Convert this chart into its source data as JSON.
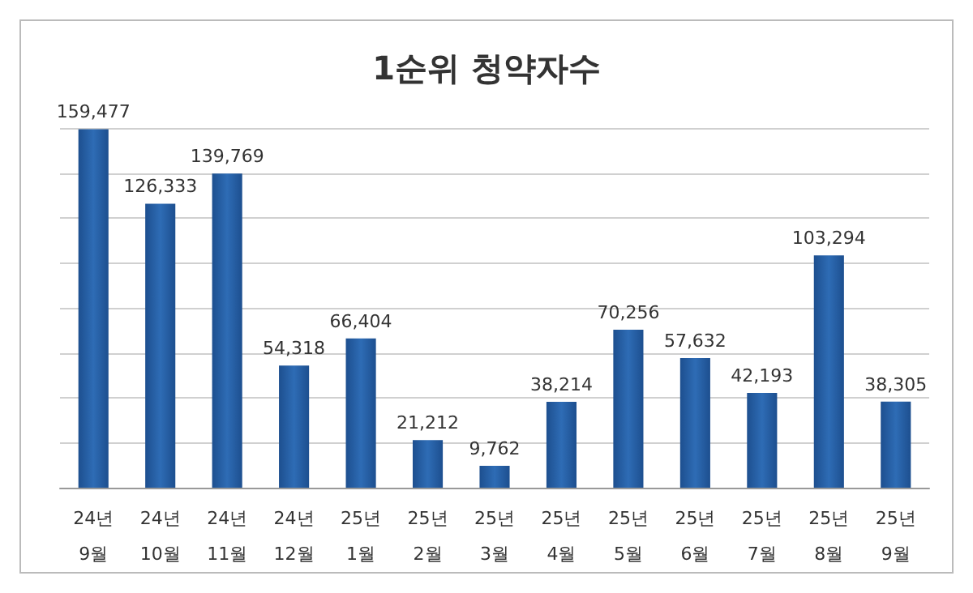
{
  "chart_data": {
    "type": "bar",
    "title": "1순위 청약자수",
    "categories": [
      "24년\n9월",
      "24년\n10월",
      "24년\n11월",
      "24년\n12월",
      "25년\n1월",
      "25년\n2월",
      "25년\n3월",
      "25년\n4월",
      "25년\n5월",
      "25년\n6월",
      "25년\n7월",
      "25년\n8월",
      "25년\n9월"
    ],
    "values": [
      159477,
      126333,
      139769,
      54318,
      66404,
      21212,
      9762,
      38214,
      70256,
      57632,
      42193,
      103294,
      38305
    ],
    "color": "#2e6cb5",
    "value_labels": [
      "159,477",
      "126,333",
      "139,769",
      "54,318",
      "66,404",
      "21,212",
      "9,762",
      "38,214",
      "70,256",
      "57,632",
      "42,193",
      "103,294",
      "38,305"
    ],
    "tick_labels": "x",
    "grid": "y"
  }
}
